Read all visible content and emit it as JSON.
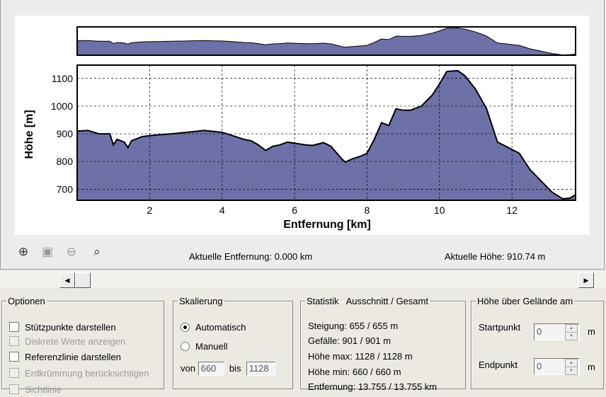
{
  "chart_data": {
    "type": "area",
    "xlabel": "Entfernung [km]",
    "ylabel": "Höhe [m]",
    "xlim": [
      0,
      13.755
    ],
    "ylim": [
      660,
      1148
    ],
    "xticks": [
      2,
      4,
      6,
      8,
      10,
      12
    ],
    "yticks": [
      700,
      800,
      900,
      1000,
      1100
    ],
    "grid": true,
    "fill_color": "#6e70a8",
    "x": [
      0,
      0.3,
      0.6,
      0.9,
      1.0,
      1.1,
      1.3,
      1.4,
      1.5,
      1.8,
      2.0,
      2.3,
      2.6,
      3.0,
      3.5,
      3.8,
      4.0,
      4.3,
      4.6,
      4.8,
      5.0,
      5.2,
      5.4,
      5.6,
      5.8,
      6.0,
      6.3,
      6.5,
      6.8,
      7.0,
      7.3,
      7.4,
      7.6,
      7.8,
      8.0,
      8.2,
      8.4,
      8.6,
      8.8,
      9.0,
      9.2,
      9.5,
      9.8,
      10.0,
      10.2,
      10.5,
      10.7,
      11.0,
      11.3,
      11.6,
      11.9,
      12.2,
      12.5,
      12.8,
      13.1,
      13.4,
      13.6,
      13.755
    ],
    "y": [
      910,
      912,
      900,
      900,
      860,
      880,
      870,
      850,
      875,
      890,
      893,
      897,
      900,
      905,
      912,
      908,
      905,
      893,
      880,
      875,
      860,
      840,
      855,
      860,
      870,
      866,
      860,
      858,
      868,
      855,
      810,
      798,
      810,
      818,
      830,
      880,
      940,
      930,
      990,
      985,
      985,
      1000,
      1040,
      1080,
      1125,
      1128,
      1110,
      1060,
      990,
      870,
      850,
      830,
      770,
      730,
      690,
      665,
      668,
      680
    ]
  },
  "status": {
    "distance": "Aktuelle Entfernung: 0.000 km",
    "height": "Aktuelle Höhe: 910.74 m"
  },
  "toolbar": [
    "zoom-in",
    "zoom-box",
    "zoom-out",
    "zoom-reset"
  ],
  "options": {
    "title": "Optionen",
    "items": [
      {
        "label": "Stützpunkte darstellen",
        "enabled": true
      },
      {
        "label": "Diskrete Werte anzeigen",
        "enabled": false
      },
      {
        "label": "Referenzlinie darstellen",
        "enabled": true
      },
      {
        "label": "Erdkrümmung berücksichtigen",
        "enabled": false
      },
      {
        "label": "Sichtlinie",
        "enabled": false
      }
    ]
  },
  "scaling": {
    "title": "Skalierung",
    "auto": "Automatisch",
    "manual": "Manuell",
    "from_label": "von",
    "from": "660",
    "to_label": "bis",
    "to": "1128"
  },
  "stats": {
    "title": "Statistik   Ausschnitt / Gesamt",
    "lines": [
      "Steigung: 655 / 655 m",
      "Gefälle: 901 / 901 m",
      "Höhe max: 1128 / 1128 m",
      "Höhe min: 660 / 660 m",
      "Entfernung: 13.755 / 13.755 km"
    ]
  },
  "terrain": {
    "title": "Höhe über Gelände am",
    "start_label": "Startpunkt",
    "start": "0",
    "end_label": "Endpunkt",
    "end": "0",
    "unit": "m"
  }
}
